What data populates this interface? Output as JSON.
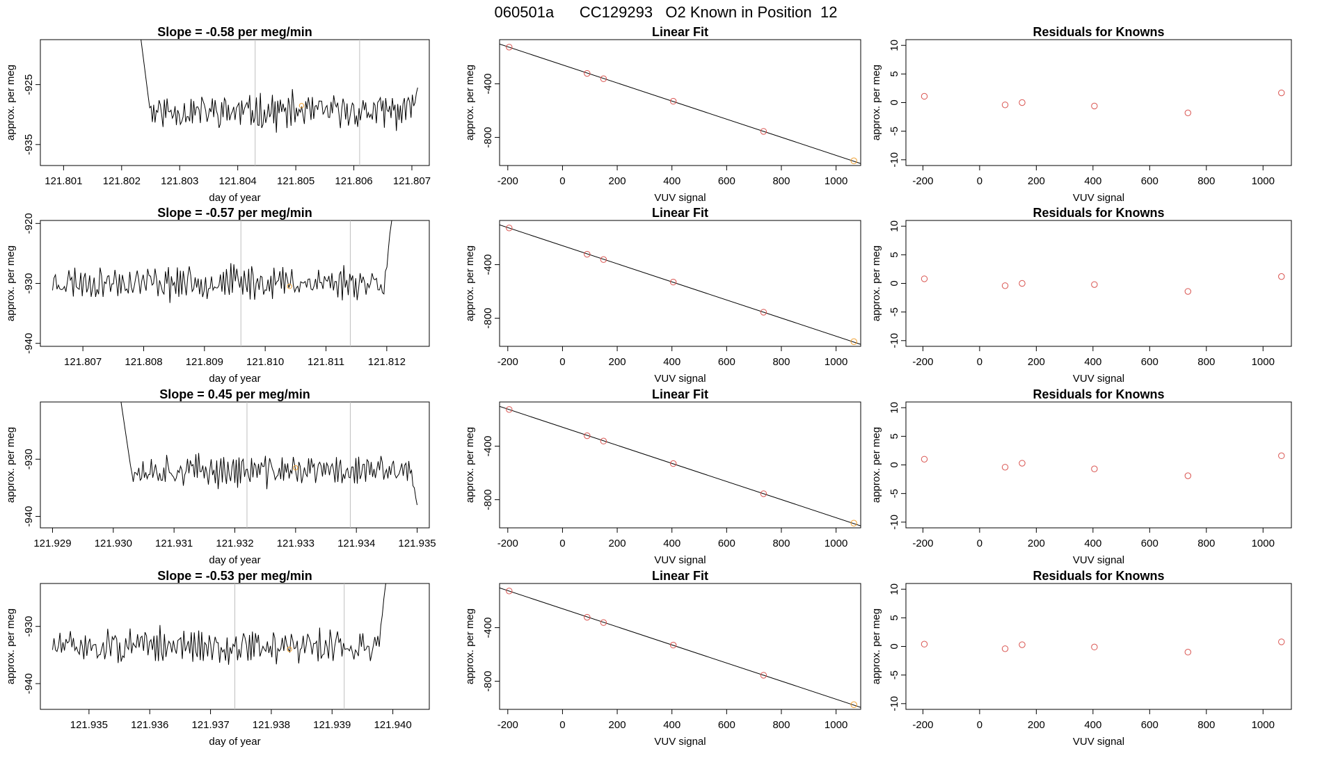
{
  "page_title": "060501a      CC129293   O2 Known in Position  12",
  "colors": {
    "line": "#000000",
    "grid": "#bfbfbf",
    "point_red": "#d9534f",
    "point_orange": "#f0a030"
  },
  "chart_data": [
    {
      "type": "line",
      "panel": "timeseries",
      "row": 0,
      "title": "Slope =  -0.58  per meg/min",
      "xlabel": "day of year",
      "ylabel": "approx. per meg",
      "xlim": [
        121.8006,
        121.8073
      ],
      "ylim": [
        -938.5,
        -917.5
      ],
      "xticks": [
        "121.801",
        "121.802",
        "121.803",
        "121.804",
        "121.805",
        "121.806",
        "121.807"
      ],
      "yticks": [
        "-925",
        "-935"
      ],
      "vlines": [
        121.8043,
        121.8061
      ],
      "marker": {
        "x": 121.8051,
        "y": -928.5
      },
      "series": {
        "x_start": 121.8023,
        "x_end": 121.8071,
        "n": 210,
        "seed": 11,
        "mean": -929.5,
        "amp": 3.2,
        "start_high": -915,
        "end_y": -925.5
      }
    },
    {
      "type": "line",
      "panel": "timeseries",
      "row": 1,
      "title": "Slope =  -0.57  per meg/min",
      "xlabel": "day of year",
      "ylabel": "approx. per meg",
      "xlim": [
        121.8063,
        121.8127
      ],
      "ylim": [
        -940.5,
        -919.5
      ],
      "xticks": [
        "121.807",
        "121.808",
        "121.809",
        "121.810",
        "121.811",
        "121.812"
      ],
      "yticks": [
        "-920",
        "-930",
        "-940"
      ],
      "vlines": [
        121.8096,
        121.8114
      ],
      "marker": {
        "x": 121.8104,
        "y": -930.5
      },
      "series": {
        "x_start": 121.8065,
        "x_end": 121.8121,
        "n": 230,
        "seed": 23,
        "mean": -929.8,
        "amp": 3.0,
        "start_high": null,
        "end_y": -918
      }
    },
    {
      "type": "line",
      "panel": "timeseries",
      "row": 2,
      "title": "Slope =  0.45  per meg/min",
      "xlabel": "day of year",
      "ylabel": "approx. per meg",
      "xlim": [
        121.9288,
        121.9352
      ],
      "ylim": [
        -942,
        -920
      ],
      "xticks": [
        "121.929",
        "121.930",
        "121.931",
        "121.932",
        "121.933",
        "121.934",
        "121.935"
      ],
      "yticks": [
        "-930",
        "-940"
      ],
      "vlines": [
        121.9322,
        121.9339
      ],
      "marker": {
        "x": 121.933,
        "y": -931.5
      },
      "series": {
        "x_start": 121.9301,
        "x_end": 121.935,
        "n": 215,
        "seed": 37,
        "mean": -932.0,
        "amp": 3.0,
        "start_high": -918,
        "end_y": -938
      }
    },
    {
      "type": "line",
      "panel": "timeseries",
      "row": 3,
      "title": "Slope =  -0.53  per meg/min",
      "xlabel": "day of year",
      "ylabel": "approx. per meg",
      "xlim": [
        121.9342,
        121.9406
      ],
      "ylim": [
        -944.5,
        -922.5
      ],
      "xticks": [
        "121.935",
        "121.936",
        "121.937",
        "121.938",
        "121.939",
        "121.940"
      ],
      "yticks": [
        "-930",
        "-940"
      ],
      "vlines": [
        121.9374,
        121.9392
      ],
      "marker": {
        "x": 121.9383,
        "y": -934
      },
      "series": {
        "x_start": 121.9344,
        "x_end": 121.9399,
        "n": 225,
        "seed": 51,
        "mean": -933.5,
        "amp": 3.2,
        "start_high": null,
        "end_y": -921
      }
    },
    {
      "type": "scatter",
      "panel": "linearfit",
      "row": 0,
      "title": "Linear Fit",
      "xlabel": "VUV signal",
      "ylabel": "approx. per meg",
      "xlim": [
        -230,
        1090
      ],
      "ylim": [
        -1010,
        -70
      ],
      "xticks": [
        -200,
        0,
        200,
        400,
        600,
        800,
        1000
      ],
      "yticks": [
        -400,
        -800
      ],
      "points": [
        [
          -195,
          -126
        ],
        [
          90,
          -322
        ],
        [
          150,
          -362
        ],
        [
          405,
          -530
        ],
        [
          735,
          -755
        ],
        [
          1065,
          -975
        ]
      ],
      "fit": [
        [
          -230,
          -103
        ],
        [
          1090,
          -995
        ]
      ]
    },
    {
      "type": "scatter",
      "panel": "linearfit",
      "row": 1,
      "title": "Linear Fit",
      "xlabel": "VUV signal",
      "ylabel": "approx. per meg",
      "xlim": [
        -230,
        1090
      ],
      "ylim": [
        -1010,
        -70
      ],
      "xticks": [
        -200,
        0,
        200,
        400,
        600,
        800,
        1000
      ],
      "yticks": [
        -400,
        -800
      ],
      "points": [
        [
          -195,
          -126
        ],
        [
          90,
          -322
        ],
        [
          150,
          -362
        ],
        [
          405,
          -530
        ],
        [
          735,
          -755
        ],
        [
          1065,
          -975
        ]
      ],
      "fit": [
        [
          -230,
          -103
        ],
        [
          1090,
          -995
        ]
      ]
    },
    {
      "type": "scatter",
      "panel": "linearfit",
      "row": 2,
      "title": "Linear Fit",
      "xlabel": "VUV signal",
      "ylabel": "approx. per meg",
      "xlim": [
        -230,
        1090
      ],
      "ylim": [
        -1010,
        -70
      ],
      "xticks": [
        -200,
        0,
        200,
        400,
        600,
        800,
        1000
      ],
      "yticks": [
        -400,
        -800
      ],
      "points": [
        [
          -195,
          -126
        ],
        [
          90,
          -322
        ],
        [
          150,
          -362
        ],
        [
          405,
          -530
        ],
        [
          735,
          -755
        ],
        [
          1065,
          -975
        ]
      ],
      "fit": [
        [
          -230,
          -103
        ],
        [
          1090,
          -995
        ]
      ]
    },
    {
      "type": "scatter",
      "panel": "linearfit",
      "row": 3,
      "title": "Linear Fit",
      "xlabel": "VUV signal",
      "ylabel": "approx. per meg",
      "xlim": [
        -230,
        1090
      ],
      "ylim": [
        -1010,
        -70
      ],
      "xticks": [
        -200,
        0,
        200,
        400,
        600,
        800,
        1000
      ],
      "yticks": [
        -400,
        -800
      ],
      "points": [
        [
          -195,
          -126
        ],
        [
          90,
          -322
        ],
        [
          150,
          -362
        ],
        [
          405,
          -530
        ],
        [
          735,
          -755
        ],
        [
          1065,
          -975
        ]
      ],
      "fit": [
        [
          -230,
          -103
        ],
        [
          1090,
          -995
        ]
      ]
    },
    {
      "type": "scatter",
      "panel": "residuals",
      "row": 0,
      "title": "Residuals for Knowns",
      "xlabel": "VUV signal",
      "ylabel": "approx. per meg",
      "xlim": [
        -260,
        1100
      ],
      "ylim": [
        -11,
        11
      ],
      "xticks": [
        -200,
        0,
        200,
        400,
        600,
        800,
        1000
      ],
      "yticks": [
        10,
        5,
        0,
        -5,
        -10
      ],
      "points": [
        [
          -195,
          1.1
        ],
        [
          90,
          -0.4
        ],
        [
          150,
          0.0
        ],
        [
          405,
          -0.6
        ],
        [
          735,
          -1.8
        ],
        [
          1065,
          1.7
        ]
      ]
    },
    {
      "type": "scatter",
      "panel": "residuals",
      "row": 1,
      "title": "Residuals for Knowns",
      "xlabel": "VUV signal",
      "ylabel": "approx. per meg",
      "xlim": [
        -260,
        1100
      ],
      "ylim": [
        -11,
        11
      ],
      "xticks": [
        -200,
        0,
        200,
        400,
        600,
        800,
        1000
      ],
      "yticks": [
        10,
        5,
        0,
        -5,
        -10
      ],
      "points": [
        [
          -195,
          0.8
        ],
        [
          90,
          -0.4
        ],
        [
          150,
          0.0
        ],
        [
          405,
          -0.2
        ],
        [
          735,
          -1.4
        ],
        [
          1065,
          1.2
        ]
      ]
    },
    {
      "type": "scatter",
      "panel": "residuals",
      "row": 2,
      "title": "Residuals for Knowns",
      "xlabel": "VUV signal",
      "ylabel": "approx. per meg",
      "xlim": [
        -260,
        1100
      ],
      "ylim": [
        -11,
        11
      ],
      "xticks": [
        -200,
        0,
        200,
        400,
        600,
        800,
        1000
      ],
      "yticks": [
        10,
        5,
        0,
        -5,
        -10
      ],
      "points": [
        [
          -195,
          1.0
        ],
        [
          90,
          -0.4
        ],
        [
          150,
          0.3
        ],
        [
          405,
          -0.7
        ],
        [
          735,
          -1.9
        ],
        [
          1065,
          1.6
        ]
      ]
    },
    {
      "type": "scatter",
      "panel": "residuals",
      "row": 3,
      "title": "Residuals for Knowns",
      "xlabel": "VUV signal",
      "ylabel": "approx. per meg",
      "xlim": [
        -260,
        1100
      ],
      "ylim": [
        -11,
        11
      ],
      "xticks": [
        -200,
        0,
        200,
        400,
        600,
        800,
        1000
      ],
      "yticks": [
        10,
        5,
        0,
        -5,
        -10
      ],
      "points": [
        [
          -195,
          0.4
        ],
        [
          90,
          -0.4
        ],
        [
          150,
          0.3
        ],
        [
          405,
          -0.1
        ],
        [
          735,
          -1.0
        ],
        [
          1065,
          0.8
        ]
      ]
    }
  ]
}
